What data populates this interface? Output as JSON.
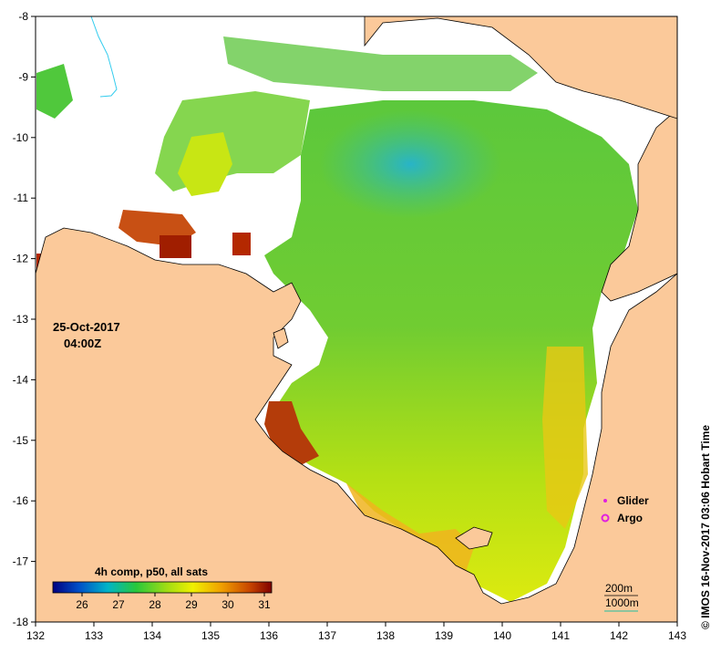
{
  "map": {
    "x_axis": {
      "min": 132,
      "max": 143,
      "ticks": [
        "132",
        "133",
        "134",
        "135",
        "136",
        "137",
        "138",
        "139",
        "140",
        "141",
        "142",
        "143"
      ]
    },
    "y_axis": {
      "min": -18,
      "max": -8,
      "ticks": [
        "-8",
        "-9",
        "-10",
        "-11",
        "-12",
        "-13",
        "-14",
        "-15",
        "-16",
        "-17",
        "-18"
      ]
    },
    "colors": {
      "land": "#fbc99a",
      "no_data": "#ffffff",
      "coastline": "#000000",
      "river": "#33ccee"
    }
  },
  "info": {
    "date": "25-Oct-2017",
    "time": "04:00Z"
  },
  "colorbar": {
    "title": "4h comp, p50, all sats",
    "tick_labels": [
      "26",
      "27",
      "28",
      "29",
      "30",
      "31"
    ],
    "ticks": [
      26,
      27,
      28,
      29,
      30,
      31
    ],
    "min": 25.2,
    "max": 31.2,
    "stops": [
      "#000080",
      "#0050c8",
      "#00b4c8",
      "#28c83c",
      "#a0dc14",
      "#f0f000",
      "#f0a000",
      "#c84600",
      "#800000"
    ]
  },
  "legend": {
    "glider_label": "Glider",
    "argo_label": "Argo",
    "glider_color": "#e020e0",
    "argo_color": "#e020e0"
  },
  "contours": {
    "depth_200_label": "200m",
    "depth_1000_label": "1000m",
    "depth_1000_color": "#20c0a0"
  },
  "credit": "© IMOS 16-Nov-2017 03:06 Hobart Time"
}
